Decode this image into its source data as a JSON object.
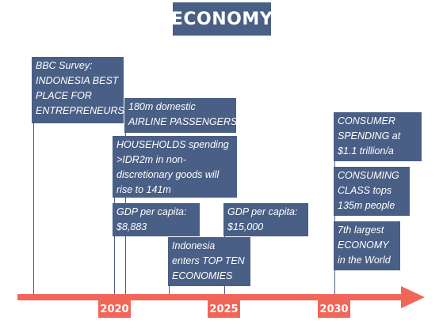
{
  "title": "ECONOMY",
  "colors": {
    "box": "#4a5f85",
    "axis": "#f0675a",
    "text": "#ffffff"
  },
  "years": [
    "2020",
    "2025",
    "2030"
  ],
  "events": [
    {
      "id": "bbc-survey",
      "lines": [
        "BBC Survey:",
        "INDONESIA BEST",
        "PLACE FOR",
        "ENTREPRENEURS"
      ]
    },
    {
      "id": "airline-passengers",
      "lines": [
        "180m domestic",
        "AIRLINE PASSENGERS"
      ]
    },
    {
      "id": "households-spending",
      "lines": [
        "HOUSEHOLDS spending",
        ">IDR2m in non-",
        "discretionary goods will",
        "rise to 141m"
      ]
    },
    {
      "id": "gdp-2020",
      "lines": [
        "GDP per capita:",
        "$8,883"
      ]
    },
    {
      "id": "gdp-2025",
      "lines": [
        "GDP per capita:",
        "$15,000"
      ]
    },
    {
      "id": "top-ten",
      "lines": [
        "Indonesia",
        "enters TOP TEN",
        "ECONOMIES"
      ]
    },
    {
      "id": "consumer-spending",
      "lines": [
        "CONSUMER",
        "SPENDING at",
        "$1.1 trillion/a"
      ]
    },
    {
      "id": "consuming-class",
      "lines": [
        "CONSUMING",
        "CLASS tops",
        "135m people"
      ]
    },
    {
      "id": "seventh-largest",
      "lines": [
        "7th largest",
        "ECONOMY",
        "in the World"
      ]
    }
  ]
}
